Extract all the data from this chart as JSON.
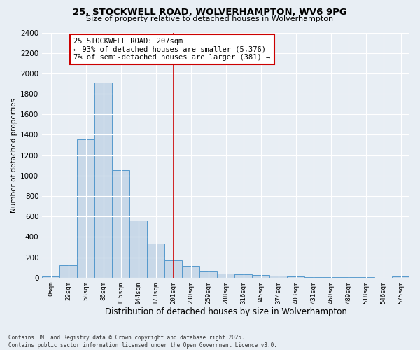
{
  "title1": "25, STOCKWELL ROAD, WOLVERHAMPTON, WV6 9PG",
  "title2": "Size of property relative to detached houses in Wolverhampton",
  "xlabel": "Distribution of detached houses by size in Wolverhampton",
  "ylabel": "Number of detached properties",
  "footer1": "Contains HM Land Registry data © Crown copyright and database right 2025.",
  "footer2": "Contains public sector information licensed under the Open Government Licence v3.0.",
  "bar_labels": [
    "0sqm",
    "29sqm",
    "58sqm",
    "86sqm",
    "115sqm",
    "144sqm",
    "173sqm",
    "201sqm",
    "230sqm",
    "259sqm",
    "288sqm",
    "316sqm",
    "345sqm",
    "374sqm",
    "403sqm",
    "431sqm",
    "460sqm",
    "489sqm",
    "518sqm",
    "546sqm",
    "575sqm"
  ],
  "bar_values": [
    10,
    125,
    1355,
    1910,
    1055,
    560,
    335,
    170,
    115,
    65,
    40,
    30,
    25,
    20,
    15,
    5,
    5,
    3,
    3,
    2,
    10
  ],
  "bar_color": "#c8d8e8",
  "bar_edge_color": "#5599cc",
  "vline_x": 7,
  "vline_color": "#cc0000",
  "annotation_text": "25 STOCKWELL ROAD: 207sqm\n← 93% of detached houses are smaller (5,376)\n7% of semi-detached houses are larger (381) →",
  "annotation_box_color": "#ffffff",
  "annotation_box_edge_color": "#cc0000",
  "annotation_fontsize": 7.5,
  "bg_color": "#e8eef4",
  "plot_bg_color": "#e8eef4",
  "grid_color": "#ffffff",
  "ylim": [
    0,
    2400
  ],
  "yticks": [
    0,
    200,
    400,
    600,
    800,
    1000,
    1200,
    1400,
    1600,
    1800,
    2000,
    2200,
    2400
  ],
  "title1_fontsize": 9.5,
  "title2_fontsize": 8.0,
  "xlabel_fontsize": 8.5,
  "ylabel_fontsize": 7.5,
  "ytick_fontsize": 7.5,
  "xtick_fontsize": 6.5,
  "footer_fontsize": 5.5
}
